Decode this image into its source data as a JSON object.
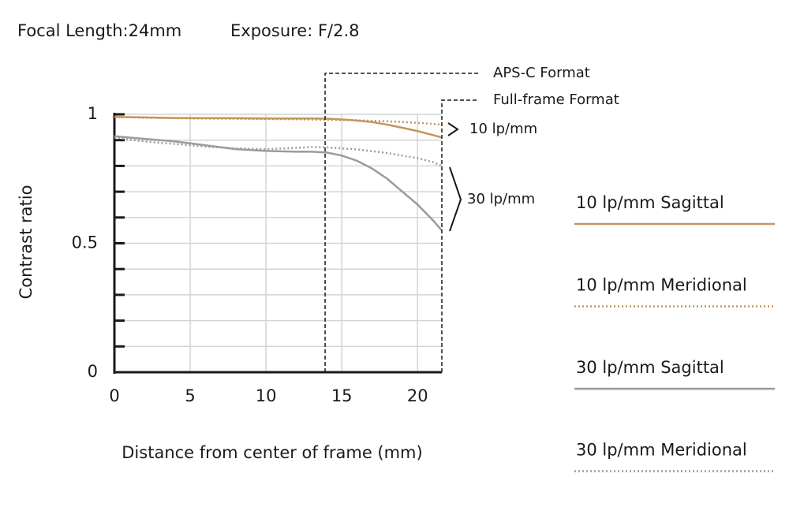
{
  "chart_data": {
    "type": "line",
    "header": [
      "Focal Length:24mm",
      "Exposure: F/2.8"
    ],
    "x_label": "Distance from center of frame (mm)",
    "y_label": "Contrast ratio",
    "xlim": [
      0,
      21.6
    ],
    "ylim": [
      0,
      1
    ],
    "xticks": [
      0,
      5,
      10,
      15,
      20
    ],
    "yticks": [
      0,
      0.5,
      1
    ],
    "ygrid": [
      0,
      0.1,
      0.2,
      0.3,
      0.4,
      0.5,
      0.6,
      0.7,
      0.8,
      0.9,
      1
    ],
    "grid": true,
    "x": [
      0,
      2,
      4,
      6,
      8,
      10,
      12,
      13,
      14,
      15,
      16,
      17,
      18,
      19,
      20,
      21,
      21.6
    ],
    "series": [
      {
        "name": "10 lp/mm Sagittal",
        "color": "#c4955a",
        "line_style": "solid",
        "values": [
          0.99,
          0.988,
          0.986,
          0.985,
          0.985,
          0.984,
          0.984,
          0.984,
          0.983,
          0.98,
          0.976,
          0.97,
          0.96,
          0.948,
          0.935,
          0.92,
          0.91
        ]
      },
      {
        "name": "10 lp/mm Meridional",
        "color": "#c4955a",
        "line_style": "dotted",
        "values": [
          0.99,
          0.987,
          0.985,
          0.984,
          0.983,
          0.982,
          0.981,
          0.98,
          0.979,
          0.978,
          0.977,
          0.975,
          0.973,
          0.97,
          0.967,
          0.963,
          0.96
        ]
      },
      {
        "name": "30 lp/mm Sagittal",
        "color": "#9a9aa3",
        "line_style": "solid",
        "values": [
          0.915,
          0.905,
          0.895,
          0.88,
          0.865,
          0.858,
          0.855,
          0.855,
          0.852,
          0.84,
          0.82,
          0.79,
          0.75,
          0.7,
          0.65,
          0.59,
          0.55
        ]
      },
      {
        "name": "30 lp/mm Meridional",
        "color": "#9a9aa3",
        "line_style": "dotted",
        "values": [
          0.91,
          0.895,
          0.885,
          0.875,
          0.868,
          0.865,
          0.87,
          0.873,
          0.872,
          0.868,
          0.864,
          0.857,
          0.85,
          0.84,
          0.83,
          0.815,
          0.8
        ]
      }
    ],
    "format_lines": [
      {
        "label": "APS-C Format",
        "x": 13.9
      },
      {
        "label": "Full-frame Format",
        "x": 21.6
      }
    ],
    "curve_labels": [
      "10 lp/mm",
      "30 lp/mm"
    ]
  }
}
